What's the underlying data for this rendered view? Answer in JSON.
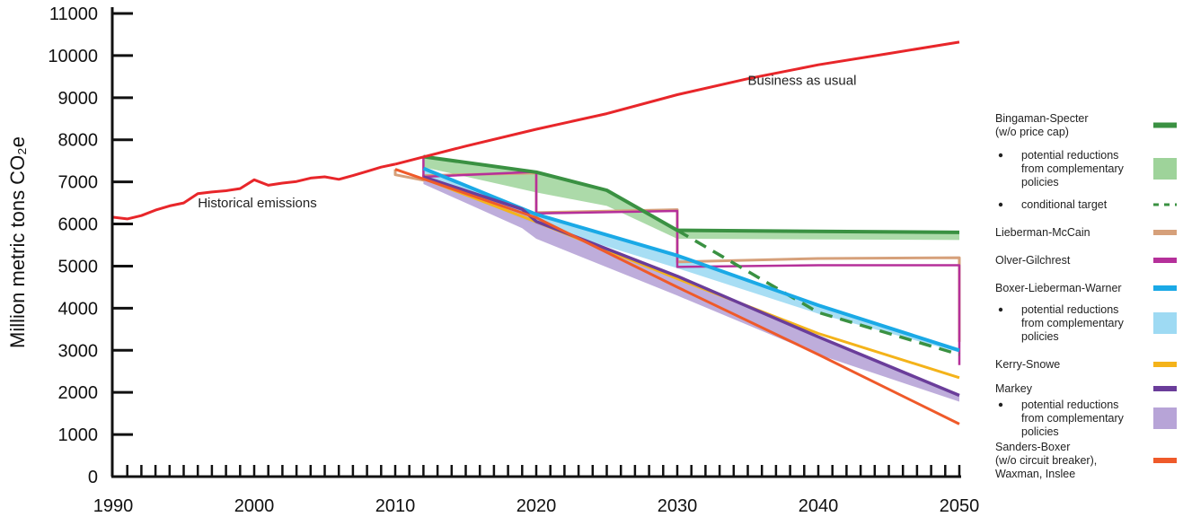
{
  "chart_data": {
    "type": "line",
    "title": "",
    "xlabel": "",
    "ylabel": "Million metric tons CO₂e",
    "xlim": [
      1990,
      2050
    ],
    "ylim": [
      0,
      11000
    ],
    "x_ticks": [
      "1990",
      "2000",
      "2010",
      "2020",
      "2030",
      "2040",
      "2050"
    ],
    "y_ticks": [
      "0",
      "1000",
      "2000",
      "3000",
      "4000",
      "5000",
      "6000",
      "7000",
      "8000",
      "9000",
      "10000",
      "11000"
    ],
    "grid": false,
    "legend_position": "right",
    "annotations": [
      {
        "id": "historical",
        "text": "Historical emissions",
        "x": 1996,
        "y": 6400
      },
      {
        "id": "bau",
        "text": "Business as usual",
        "x": 2035,
        "y": 9300
      }
    ],
    "series": [
      {
        "id": "historical",
        "color": "#e8262a",
        "width": 3,
        "style": "solid",
        "points": [
          [
            1990,
            6160
          ],
          [
            1991,
            6120
          ],
          [
            1992,
            6200
          ],
          [
            1993,
            6330
          ],
          [
            1994,
            6430
          ],
          [
            1995,
            6500
          ],
          [
            1996,
            6720
          ],
          [
            1997,
            6760
          ],
          [
            1998,
            6790
          ],
          [
            1999,
            6840
          ],
          [
            2000,
            7050
          ],
          [
            2001,
            6920
          ],
          [
            2002,
            6970
          ],
          [
            2003,
            7010
          ],
          [
            2004,
            7090
          ],
          [
            2005,
            7120
          ],
          [
            2006,
            7060
          ],
          [
            2007,
            7150
          ],
          [
            2008,
            7250
          ],
          [
            2009,
            7350
          ],
          [
            2010,
            7420
          ]
        ]
      },
      {
        "id": "bau",
        "color": "#e8262a",
        "width": 3,
        "style": "solid",
        "points": [
          [
            2010,
            7420
          ],
          [
            2015,
            7850
          ],
          [
            2020,
            8250
          ],
          [
            2025,
            8620
          ],
          [
            2030,
            9070
          ],
          [
            2035,
            9450
          ],
          [
            2040,
            9780
          ],
          [
            2045,
            10050
          ],
          [
            2050,
            10320
          ]
        ]
      },
      {
        "id": "bingaman",
        "color": "#3a9142",
        "width": 4,
        "style": "solid",
        "points": [
          [
            2012,
            7600
          ],
          [
            2020,
            7230
          ],
          [
            2025,
            6800
          ],
          [
            2030,
            5850
          ],
          [
            2050,
            5800
          ]
        ]
      },
      {
        "id": "bingaman_conditional",
        "color": "#3a9142",
        "width": 3.5,
        "style": "dashed",
        "points": [
          [
            2030,
            5850
          ],
          [
            2040,
            3900
          ],
          [
            2050,
            2900
          ]
        ]
      },
      {
        "id": "lieberman",
        "color": "#d6a07a",
        "width": 3,
        "style": "solid",
        "points": [
          [
            2010,
            7300
          ],
          [
            2010,
            7170
          ],
          [
            2012,
            7040
          ],
          [
            2012,
            7150
          ],
          [
            2020,
            7210
          ],
          [
            2020,
            6270
          ],
          [
            2030,
            6340
          ],
          [
            2030,
            5100
          ],
          [
            2040,
            5180
          ],
          [
            2050,
            5200
          ],
          [
            2050,
            3200
          ]
        ]
      },
      {
        "id": "olver",
        "color": "#b5309a",
        "width": 2.5,
        "style": "solid",
        "points": [
          [
            2012,
            7580
          ],
          [
            2012,
            7120
          ],
          [
            2020,
            7240
          ],
          [
            2020,
            6250
          ],
          [
            2030,
            6310
          ],
          [
            2030,
            4980
          ],
          [
            2040,
            5020
          ],
          [
            2050,
            5020
          ],
          [
            2050,
            2650
          ]
        ]
      },
      {
        "id": "boxer",
        "color": "#1aa9e6",
        "width": 4,
        "style": "solid",
        "points": [
          [
            2012,
            7320
          ],
          [
            2020,
            6230
          ],
          [
            2030,
            5250
          ],
          [
            2040,
            4070
          ],
          [
            2050,
            3000
          ]
        ]
      },
      {
        "id": "kerry",
        "color": "#f4b31a",
        "width": 3,
        "style": "solid",
        "points": [
          [
            2012,
            7080
          ],
          [
            2020,
            6050
          ],
          [
            2030,
            4700
          ],
          [
            2040,
            3400
          ],
          [
            2050,
            2350
          ]
        ]
      },
      {
        "id": "markey",
        "color": "#6a3d9a",
        "width": 3.5,
        "style": "solid",
        "points": [
          [
            2012,
            7120
          ],
          [
            2019,
            6350
          ],
          [
            2020,
            6060
          ],
          [
            2030,
            4760
          ],
          [
            2040,
            3320
          ],
          [
            2050,
            1930
          ]
        ]
      },
      {
        "id": "sanders",
        "color": "#ef5a2a",
        "width": 3,
        "style": "solid",
        "points": [
          [
            2010,
            7300
          ],
          [
            2020,
            6150
          ],
          [
            2030,
            4500
          ],
          [
            2040,
            2900
          ],
          [
            2050,
            1250
          ]
        ]
      }
    ],
    "bands": [
      {
        "id": "bingaman_band",
        "color": "#9ed39a",
        "opacity": 0.85,
        "upper": [
          [
            2012,
            7600
          ],
          [
            2020,
            7230
          ],
          [
            2025,
            6800
          ],
          [
            2030,
            5850
          ],
          [
            2050,
            5800
          ]
        ],
        "lower": [
          [
            2012,
            7350
          ],
          [
            2020,
            6750
          ],
          [
            2025,
            6430
          ],
          [
            2030,
            5650
          ],
          [
            2050,
            5620
          ]
        ]
      },
      {
        "id": "boxer_band",
        "color": "#9edaf3",
        "opacity": 0.9,
        "upper": [
          [
            2012,
            7320
          ],
          [
            2020,
            6230
          ],
          [
            2030,
            5250
          ],
          [
            2040,
            4070
          ],
          [
            2050,
            3000
          ]
        ],
        "lower": [
          [
            2012,
            7100
          ],
          [
            2020,
            5980
          ],
          [
            2030,
            4950
          ],
          [
            2040,
            3870
          ],
          [
            2050,
            2950
          ]
        ]
      },
      {
        "id": "markey_band",
        "color": "#b7a4d7",
        "opacity": 0.9,
        "upper": [
          [
            2012,
            7120
          ],
          [
            2019,
            6350
          ],
          [
            2020,
            6060
          ],
          [
            2030,
            4760
          ],
          [
            2040,
            3320
          ],
          [
            2050,
            1930
          ]
        ],
        "lower": [
          [
            2012,
            6950
          ],
          [
            2019,
            5900
          ],
          [
            2020,
            5650
          ],
          [
            2030,
            4300
          ],
          [
            2040,
            2900
          ],
          [
            2050,
            1780
          ]
        ]
      }
    ],
    "legend": [
      {
        "id": "bingaman",
        "lines": [
          "Bingaman-Specter",
          "(w/o price cap)"
        ],
        "swatch": "line",
        "color": "#3a9142"
      },
      {
        "id": "bingaman_band",
        "lines": [
          "potential reductions",
          "from complementary",
          "policies"
        ],
        "swatch": "box",
        "color": "#9ed39a",
        "bullet": true
      },
      {
        "id": "bingaman_conditional",
        "lines": [
          "conditional target"
        ],
        "swatch": "dash",
        "color": "#3a9142",
        "bullet": true
      },
      {
        "id": "lieberman",
        "lines": [
          "Lieberman-McCain"
        ],
        "swatch": "line",
        "color": "#d6a07a"
      },
      {
        "id": "olver",
        "lines": [
          "Olver-Gilchrest"
        ],
        "swatch": "line",
        "color": "#b5309a"
      },
      {
        "id": "boxer",
        "lines": [
          "Boxer-Lieberman-Warner"
        ],
        "swatch": "line",
        "color": "#1aa9e6"
      },
      {
        "id": "boxer_band",
        "lines": [
          "potential reductions",
          "from complementary",
          "policies"
        ],
        "swatch": "box",
        "color": "#9edaf3",
        "bullet": true
      },
      {
        "id": "kerry",
        "lines": [
          "Kerry-Snowe"
        ],
        "swatch": "line",
        "color": "#f4b31a"
      },
      {
        "id": "markey",
        "lines": [
          "Markey"
        ],
        "swatch": "line",
        "color": "#6a3d9a"
      },
      {
        "id": "markey_band",
        "lines": [
          "potential reductions",
          "from complementary",
          "policies"
        ],
        "swatch": "box",
        "color": "#b7a4d7",
        "bullet": true
      },
      {
        "id": "sanders",
        "lines": [
          "Sanders-Boxer",
          "(w/o circuit breaker),",
          "Waxman, Inslee"
        ],
        "swatch": "line",
        "color": "#ef5a2a"
      }
    ]
  }
}
